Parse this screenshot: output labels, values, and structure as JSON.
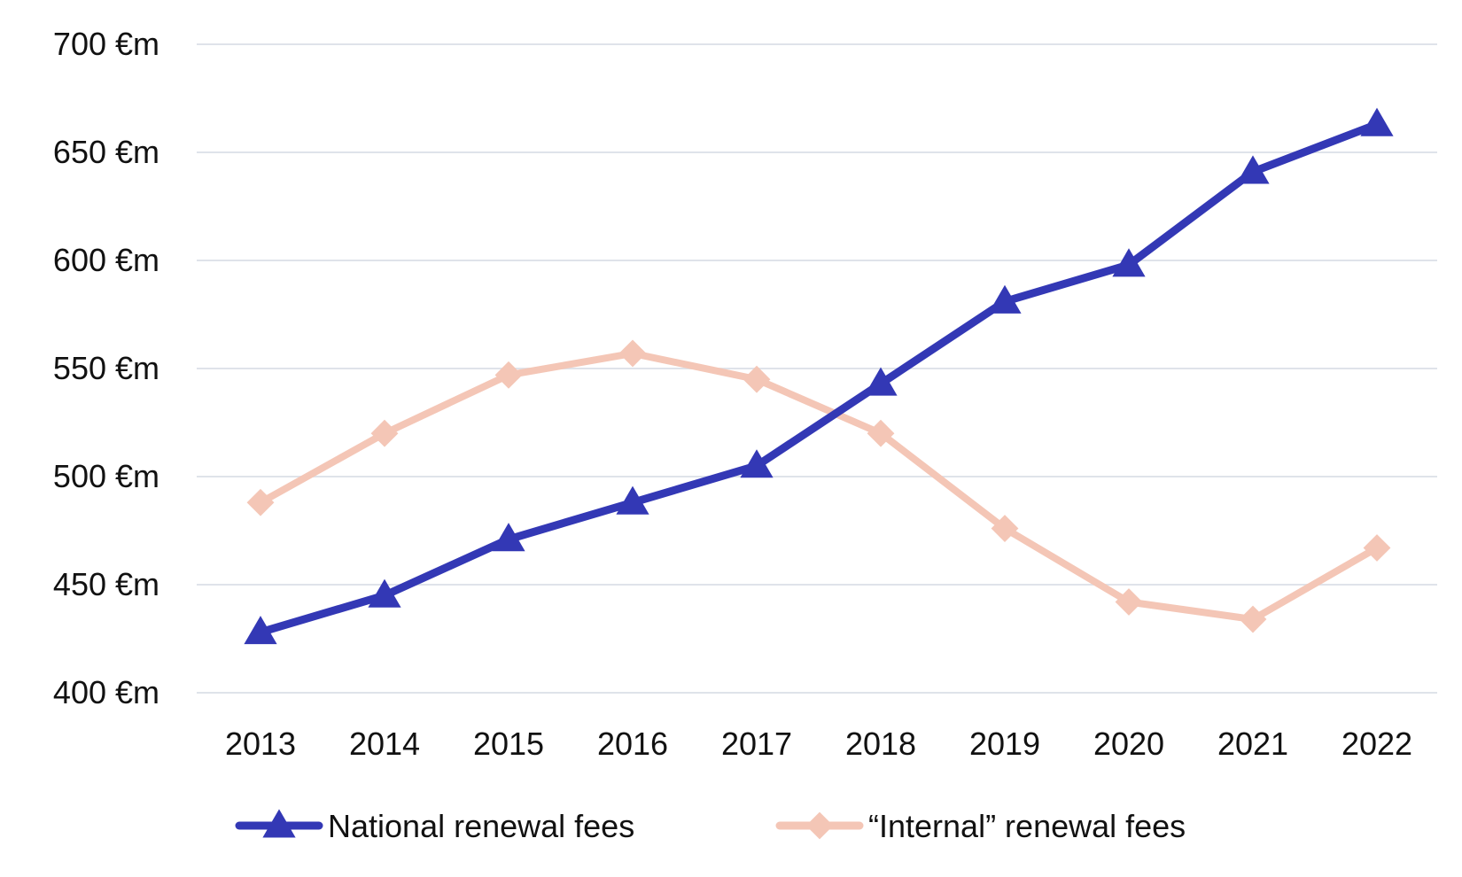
{
  "chart_data": {
    "type": "line",
    "title": "",
    "xlabel": "",
    "ylabel": "",
    "categories": [
      "2013",
      "2014",
      "2015",
      "2016",
      "2017",
      "2018",
      "2019",
      "2020",
      "2021",
      "2022"
    ],
    "ylim": [
      400,
      700
    ],
    "yticks": [
      400,
      450,
      500,
      550,
      600,
      650,
      700
    ],
    "ytick_labels": [
      "400 €m",
      "450 €m",
      "500 €m",
      "550 €m",
      "600 €m",
      "650 €m",
      "700 €m"
    ],
    "grid": "horizontal",
    "legend_position": "bottom",
    "series": [
      {
        "name": "National renewal fees",
        "color": "#3338b5",
        "marker": "triangle",
        "values": [
          428,
          445,
          471,
          488,
          505,
          543,
          581,
          598,
          641,
          663
        ]
      },
      {
        "name": "“Internal” renewal fees",
        "color": "#f4c6b6",
        "marker": "diamond",
        "values": [
          488,
          520,
          547,
          557,
          545,
          520,
          476,
          442,
          434,
          467
        ]
      }
    ]
  }
}
